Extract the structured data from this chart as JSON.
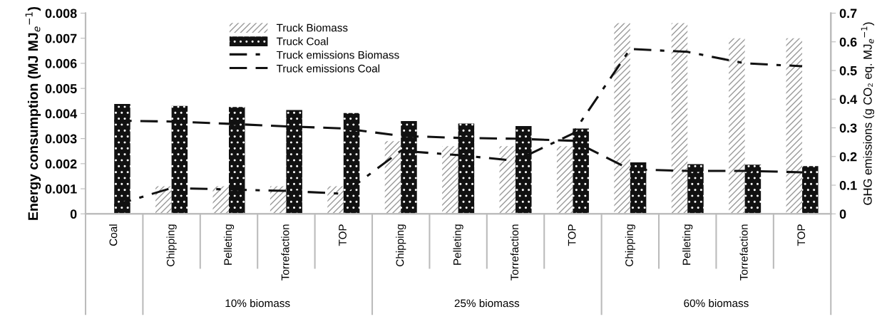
{
  "chart_data": {
    "type": "bar",
    "categories": [
      "Coal",
      "Chipping",
      "Pelleting",
      "Torrefaction",
      "TOP",
      "Chipping",
      "Pelleting",
      "Torrefaction",
      "TOP",
      "Chipping",
      "Pelleting",
      "Torrefaction",
      "TOP"
    ],
    "ylabel": "Energy consumption (MJ MJ$_{e}$$^{−1}$)",
    "y2label": "GHG emissions (g CO₂ eq. MJ$_{e}$$^{−1}$)",
    "annotations": [
      "10% biomass",
      "25% biomass",
      "60% biomass"
    ],
    "series": [
      {
        "name": "Truck Biomass",
        "color": "#9a9a9a",
        "values": [
          null,
          0.0011,
          0.0011,
          0.0011,
          0.0011,
          0.0029,
          0.0027,
          0.0027,
          0.0027,
          0.0076,
          0.0076,
          0.007,
          0.007
        ]
      },
      {
        "name": "Truck Coal",
        "color": "#111111",
        "values": [
          0.00438,
          0.0043,
          0.00426,
          0.00414,
          0.00402,
          0.0037,
          0.0036,
          0.0035,
          0.0034,
          0.00205,
          0.00198,
          0.00196,
          0.0019
        ]
      },
      {
        "name": "Truck emissions Biomass",
        "type": "line",
        "axis": "y2",
        "line_style": "dashdot",
        "color": "#111111",
        "values": [
          0.03,
          0.09,
          0.085,
          0.08,
          0.07,
          0.22,
          0.205,
          0.185,
          0.28,
          0.575,
          0.565,
          0.525,
          0.515
        ]
      },
      {
        "name": "Truck emissions Coal",
        "type": "line",
        "axis": "y2",
        "line_style": "dashed",
        "color": "#111111",
        "values": [
          0.325,
          0.322,
          0.314,
          0.305,
          0.298,
          0.272,
          0.265,
          0.262,
          0.255,
          0.155,
          0.15,
          0.15,
          0.145
        ]
      }
    ],
    "ylim": [
      0,
      0.008
    ],
    "yticks": [
      0,
      0.001,
      0.002,
      0.003,
      0.004,
      0.005,
      0.006,
      0.007,
      0.008
    ],
    "y2lim": [
      0,
      0.7
    ],
    "y2ticks": [
      0,
      0.1,
      0.2,
      0.3,
      0.4,
      0.5,
      0.6,
      0.7
    ],
    "legend": "top",
    "grid": false
  }
}
